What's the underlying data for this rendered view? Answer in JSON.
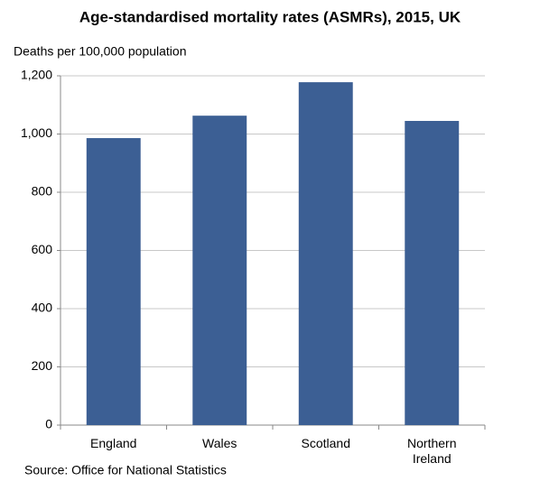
{
  "chart_data": {
    "type": "bar",
    "title": "Age-standardised mortality rates (ASMRs), 2015, UK",
    "y_axis_label": "Deaths per 100,000 population",
    "source": "Source: Office for National Statistics",
    "categories": [
      "England",
      "Wales",
      "Scotland",
      "Northern Ireland"
    ],
    "values": [
      986,
      1063,
      1178,
      1045
    ],
    "color": "#3c5f94",
    "ylim": [
      0,
      1200
    ],
    "yticks": [
      0,
      200,
      400,
      600,
      800,
      {
        "value": 1000,
        "label": "1,000"
      },
      {
        "value": 1200,
        "label": "1,200"
      }
    ],
    "grid": true
  }
}
